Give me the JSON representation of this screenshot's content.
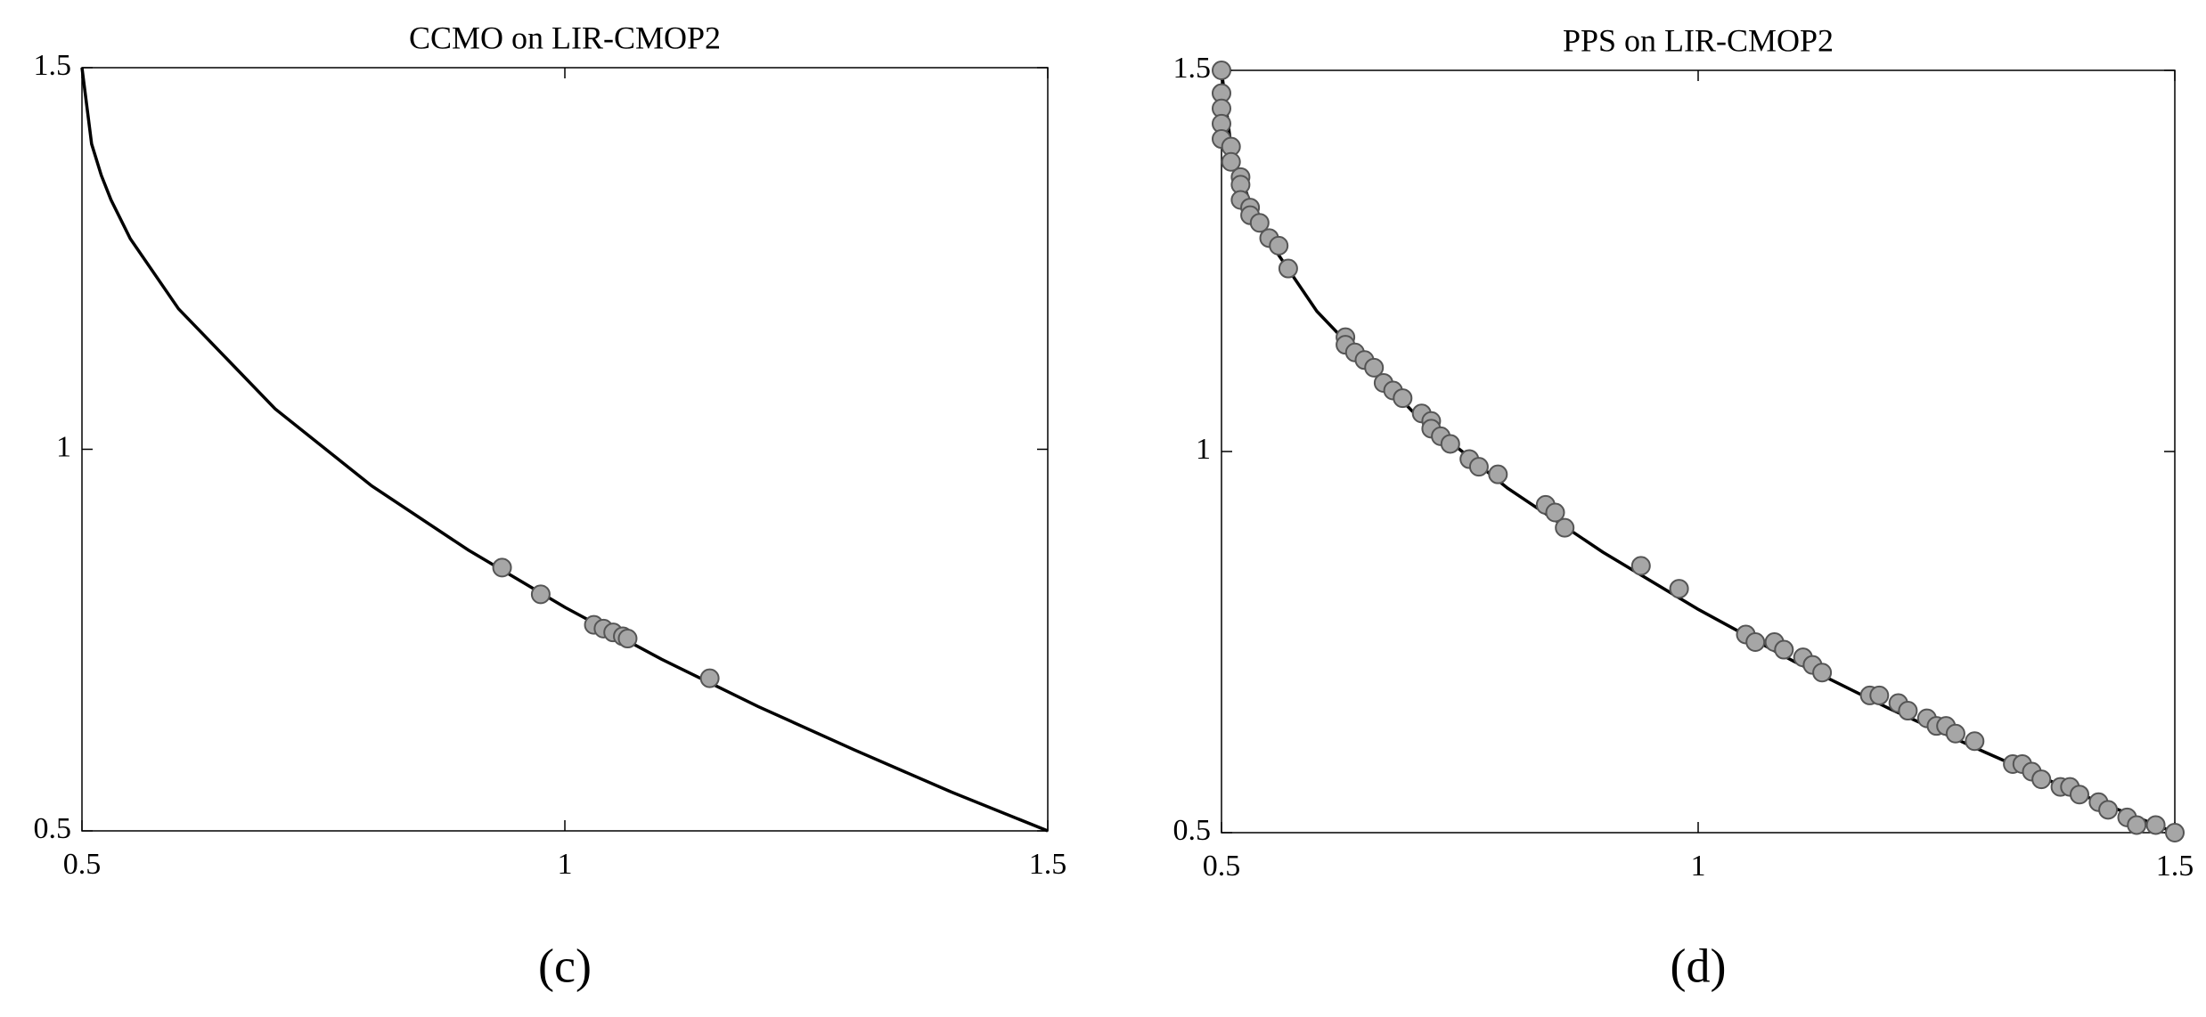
{
  "chart_data": [
    {
      "type": "scatter",
      "title": "CCMO on LIR-CMOP2",
      "panel_label": "(c)",
      "xlim": [
        0.5,
        1.5
      ],
      "ylim": [
        0.5,
        1.5
      ],
      "xticks": [
        0.5,
        1,
        1.5
      ],
      "yticks": [
        0.5,
        1,
        1.5
      ],
      "line_color": "#000000",
      "point_color": "#a6a6a6",
      "front": {
        "x": [
          0.5,
          0.51,
          0.52,
          0.53,
          0.55,
          0.6,
          0.7,
          0.8,
          0.9,
          1.0,
          1.1,
          1.2,
          1.3,
          1.4,
          1.5
        ],
        "y": [
          1.5,
          1.4,
          1.359,
          1.327,
          1.276,
          1.184,
          1.053,
          0.952,
          0.868,
          0.793,
          0.725,
          0.663,
          0.606,
          0.551,
          0.5
        ]
      },
      "points": {
        "x": [
          0.935,
          0.975,
          1.03,
          1.04,
          1.05,
          1.06,
          1.065,
          1.15
        ],
        "y": [
          0.845,
          0.81,
          0.77,
          0.765,
          0.76,
          0.755,
          0.752,
          0.7
        ]
      }
    },
    {
      "type": "scatter",
      "title": "PPS on LIR-CMOP2",
      "panel_label": "(d)",
      "xlim": [
        0.5,
        1.5
      ],
      "ylim": [
        0.5,
        1.5
      ],
      "xticks": [
        0.5,
        1,
        1.5
      ],
      "yticks": [
        0.5,
        1,
        1.5
      ],
      "line_color": "#000000",
      "point_color": "#a6a6a6",
      "front": {
        "x": [
          0.5,
          0.51,
          0.52,
          0.53,
          0.55,
          0.6,
          0.7,
          0.8,
          0.9,
          1.0,
          1.1,
          1.2,
          1.3,
          1.4,
          1.5
        ],
        "y": [
          1.5,
          1.4,
          1.359,
          1.327,
          1.276,
          1.184,
          1.053,
          0.952,
          0.868,
          0.793,
          0.725,
          0.663,
          0.606,
          0.551,
          0.5
        ]
      },
      "points": {
        "x": [
          0.5,
          0.5,
          0.5,
          0.5,
          0.5,
          0.51,
          0.51,
          0.52,
          0.52,
          0.52,
          0.53,
          0.53,
          0.54,
          0.55,
          0.56,
          0.57,
          0.63,
          0.63,
          0.64,
          0.65,
          0.66,
          0.67,
          0.68,
          0.69,
          0.71,
          0.72,
          0.72,
          0.73,
          0.74,
          0.76,
          0.77,
          0.79,
          0.84,
          0.85,
          0.86,
          0.94,
          0.98,
          1.05,
          1.06,
          1.08,
          1.09,
          1.11,
          1.12,
          1.13,
          1.18,
          1.19,
          1.21,
          1.22,
          1.24,
          1.25,
          1.26,
          1.27,
          1.29,
          1.33,
          1.34,
          1.35,
          1.36,
          1.38,
          1.39,
          1.4,
          1.42,
          1.43,
          1.45,
          1.46,
          1.48,
          1.5
        ],
        "y": [
          1.5,
          1.47,
          1.45,
          1.43,
          1.41,
          1.4,
          1.38,
          1.36,
          1.35,
          1.33,
          1.32,
          1.31,
          1.3,
          1.28,
          1.27,
          1.24,
          1.15,
          1.14,
          1.13,
          1.12,
          1.11,
          1.09,
          1.08,
          1.07,
          1.05,
          1.04,
          1.03,
          1.02,
          1.01,
          0.99,
          0.98,
          0.97,
          0.93,
          0.92,
          0.9,
          0.85,
          0.82,
          0.76,
          0.75,
          0.75,
          0.74,
          0.73,
          0.72,
          0.71,
          0.68,
          0.68,
          0.67,
          0.66,
          0.65,
          0.64,
          0.64,
          0.63,
          0.62,
          0.59,
          0.59,
          0.58,
          0.57,
          0.56,
          0.56,
          0.55,
          0.54,
          0.53,
          0.52,
          0.51,
          0.51,
          0.5
        ]
      }
    }
  ]
}
